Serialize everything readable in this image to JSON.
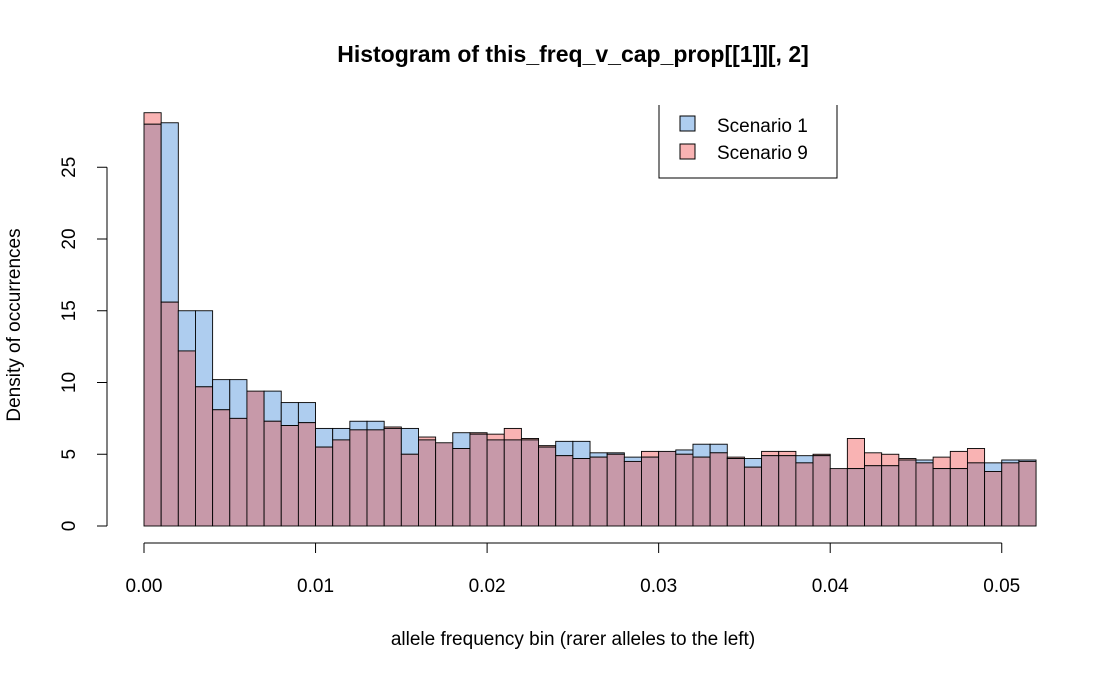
{
  "chart_data": {
    "type": "histogram",
    "title": "Histogram of this_freq_v_cap_prop[[1]][, 2]",
    "xlabel": "allele frequency bin (rarer alleles to the left)",
    "ylabel": "Density of occurrences",
    "xlim": [
      0,
      0.0525
    ],
    "ylim": [
      0,
      28
    ],
    "bin_width": 0.001,
    "x_start": 0.0,
    "x_ticks": [
      "0.00",
      "0.01",
      "0.02",
      "0.03",
      "0.04",
      "0.05"
    ],
    "x_tick_values": [
      0.0,
      0.01,
      0.02,
      0.03,
      0.04,
      0.05
    ],
    "y_ticks": [
      "0",
      "5",
      "10",
      "15",
      "20",
      "25"
    ],
    "y_tick_values": [
      0,
      5,
      10,
      15,
      20,
      25
    ],
    "legend_position": "top-right",
    "series": [
      {
        "name": "Scenario 1",
        "color": "#aecdef",
        "values": [
          28.0,
          28.1,
          15.0,
          15.0,
          10.2,
          10.2,
          9.4,
          9.4,
          8.6,
          8.6,
          6.8,
          6.8,
          7.3,
          7.3,
          6.8,
          6.8,
          6.0,
          5.8,
          6.5,
          6.4,
          6.0,
          6.0,
          6.0,
          5.5,
          5.9,
          5.9,
          5.1,
          5.1,
          4.8,
          4.8,
          5.2,
          5.3,
          5.7,
          5.7,
          4.7,
          4.7,
          4.9,
          4.9,
          4.9,
          4.9,
          4.0,
          4.0,
          4.2,
          4.2,
          4.6,
          4.6,
          4.0,
          4.0,
          4.4,
          4.4,
          4.6,
          4.6
        ]
      },
      {
        "name": "Scenario 9",
        "color": "#f9b3b3",
        "values": [
          28.8,
          15.6,
          12.2,
          9.7,
          8.1,
          7.5,
          9.4,
          7.3,
          7.0,
          7.2,
          5.5,
          6.0,
          6.7,
          6.7,
          6.9,
          5.0,
          6.2,
          5.8,
          5.4,
          6.5,
          6.4,
          6.8,
          6.1,
          5.6,
          4.9,
          4.7,
          4.8,
          5.0,
          4.5,
          5.2,
          5.2,
          5.0,
          4.8,
          5.1,
          4.8,
          4.1,
          5.2,
          5.2,
          4.4,
          5.0,
          4.0,
          6.1,
          5.1,
          5.0,
          4.7,
          4.4,
          4.8,
          5.2,
          5.4,
          3.8,
          4.4,
          4.5
        ]
      }
    ],
    "overlap_color": "#c799a9"
  }
}
